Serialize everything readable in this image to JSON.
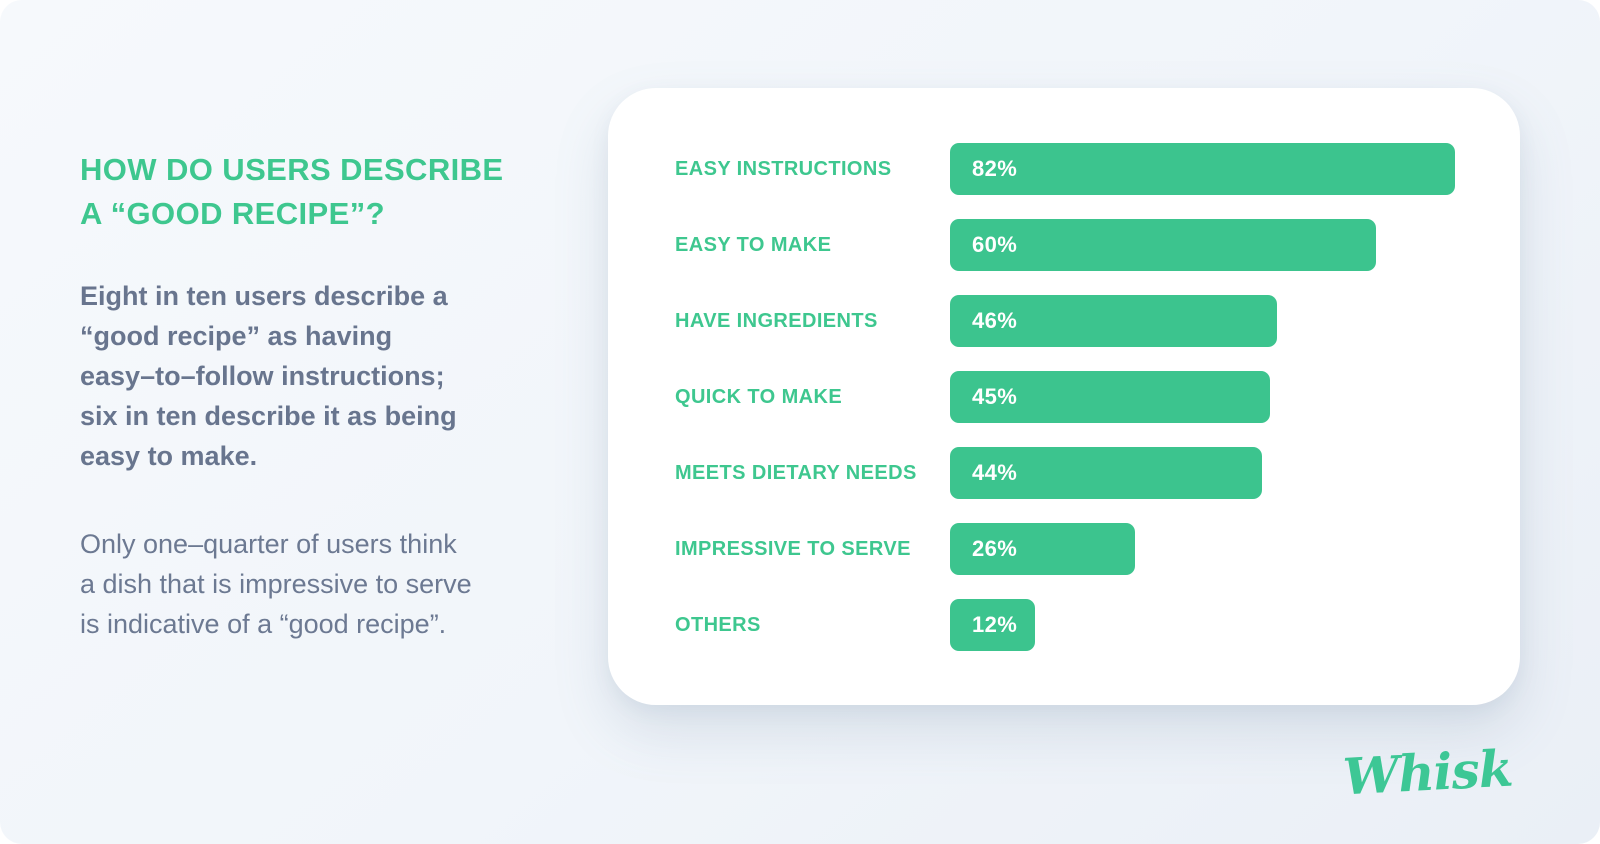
{
  "colors": {
    "background": "#f2f6fa",
    "panel": "#ffffff",
    "brand_green": "#3ec78f",
    "bar_green": "#3cc48e",
    "slate_bold_text": "#68758e",
    "slate_regular_text": "#6c7992",
    "percent_text": "#ffffff"
  },
  "left_column": {
    "heading": "HOW DO USERS DESCRIBE\nA “GOOD RECIPE”?",
    "paragraph_bold": "Eight in ten users describe a\n“good recipe” as having\neasy–to–follow instructions;\nsix in ten describe it as being\neasy to make.",
    "paragraph_regular": "Only one–quarter of users think\na dish that is impressive to serve\nis indicative of a “good recipe”."
  },
  "chart_data": {
    "type": "bar",
    "orientation": "horizontal",
    "title": "HOW DO USERS DESCRIBE A “GOOD RECIPE”?",
    "categories": [
      "EASY INSTRUCTIONS",
      "EASY TO MAKE",
      "HAVE INGREDIENTS",
      "QUICK TO MAKE",
      "MEETS DIETARY NEEDS",
      "IMPRESSIVE TO SERVE",
      "OTHERS"
    ],
    "values": [
      82,
      60,
      46,
      45,
      44,
      26,
      12
    ],
    "value_labels": [
      "82%",
      "60%",
      "46%",
      "45%",
      "44%",
      "26%",
      "12%"
    ],
    "unit": "%",
    "xlim": [
      0,
      100
    ],
    "grid": false,
    "legend": false,
    "value_label_position": "inside-left",
    "bar_color": "#3cc48e",
    "category_label_color": "#3ec78f"
  },
  "footer": {
    "logo_text": "Whisk"
  }
}
